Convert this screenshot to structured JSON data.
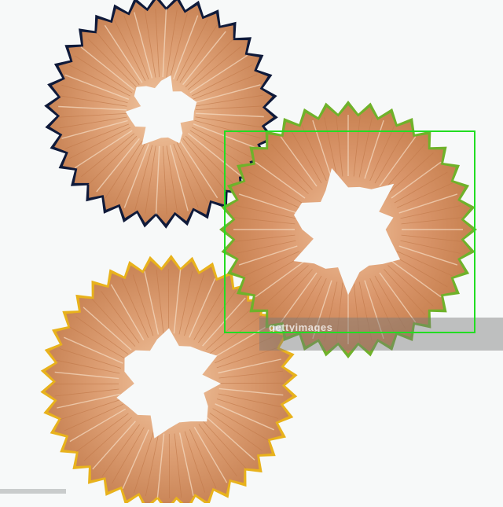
{
  "image": {
    "subject": "pencil-shavings",
    "background_color": "#f7f9f9",
    "selection_color": "#22dd22",
    "wood_color": "#d99a6c",
    "shavings": [
      {
        "name": "navy",
        "edge_color": "#0f1a3a"
      },
      {
        "name": "green",
        "edge_color": "#6fb22a"
      },
      {
        "name": "yellow",
        "edge_color": "#e8b21c"
      }
    ]
  },
  "watermark": {
    "text": "gettyimages"
  }
}
